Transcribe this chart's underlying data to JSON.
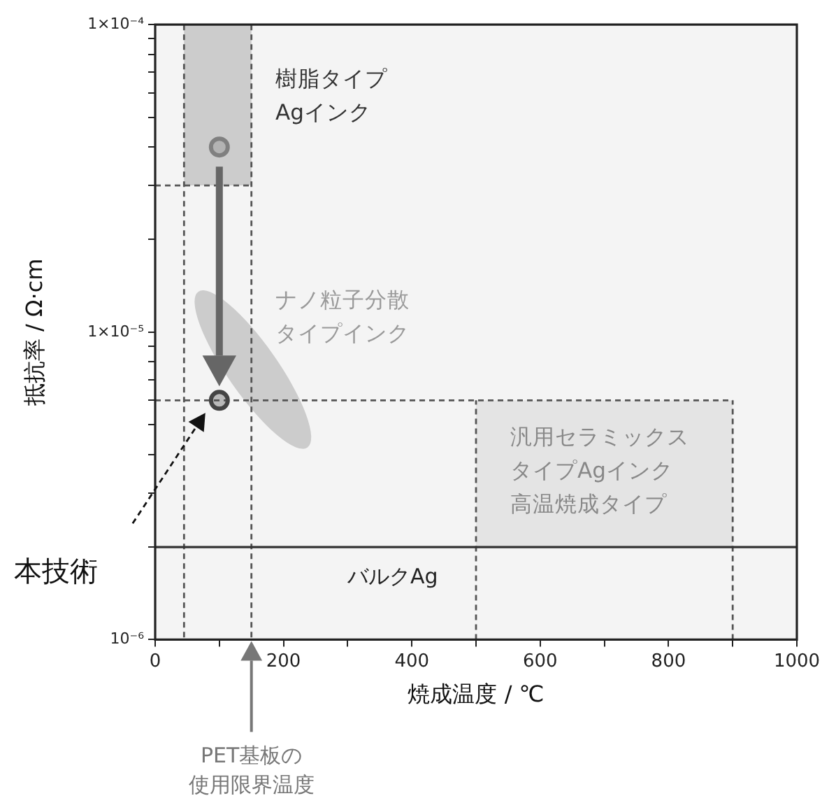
{
  "chart_data": {
    "type": "scatter",
    "xlabel": "焼成温度 / ℃",
    "ylabel": "抵抗率 / Ω·cm",
    "log": "y",
    "xlim": [
      0,
      1000
    ],
    "ylim": [
      1e-06,
      0.0001
    ],
    "xticks": [
      0,
      {
        "value": 100,
        "label": null
      },
      200,
      {
        "value": 300,
        "label": null
      },
      400,
      {
        "value": 500,
        "label": null
      },
      600,
      {
        "value": 700,
        "label": null
      },
      800,
      {
        "value": 900,
        "label": null
      },
      1000
    ],
    "yticks": [
      {
        "value": 1e-06,
        "label": "10⁻⁶"
      },
      {
        "value": 2e-06,
        "label": null
      },
      {
        "value": 3e-06,
        "label": null
      },
      {
        "value": 4e-06,
        "label": null
      },
      {
        "value": 5e-06,
        "label": null
      },
      {
        "value": 6e-06,
        "label": null
      },
      {
        "value": 7e-06,
        "label": null
      },
      {
        "value": 8e-06,
        "label": null
      },
      {
        "value": 9e-06,
        "label": null
      },
      {
        "value": 1e-05,
        "label": "1×10⁻⁵"
      },
      {
        "value": 2e-05,
        "label": null
      },
      {
        "value": 3e-05,
        "label": null
      },
      {
        "value": 4e-05,
        "label": null
      },
      {
        "value": 5e-05,
        "label": null
      },
      {
        "value": 6e-05,
        "label": null
      },
      {
        "value": 7e-05,
        "label": null
      },
      {
        "value": 8e-05,
        "label": null
      },
      {
        "value": 9e-05,
        "label": null
      },
      {
        "value": 0.0001,
        "label": "1×10⁻⁴"
      }
    ],
    "grid": false,
    "legend": false,
    "series": [
      {
        "type": "line",
        "line_style": "dashed",
        "color": "#555555",
        "x": [
          0,
          150
        ],
        "values": [
          3e-05,
          3e-05
        ]
      },
      {
        "type": "line",
        "line_style": "dashed",
        "color": "#555555",
        "x": [
          0,
          900
        ],
        "values": [
          6e-06,
          6e-06
        ]
      },
      {
        "type": "line",
        "line_style": "dashed",
        "color": "#555555",
        "x": [
          500,
          500
        ],
        "values": [
          1e-06,
          6e-06
        ]
      },
      {
        "type": "line",
        "line_style": "dashed",
        "color": "#555555",
        "x": [
          900,
          900
        ],
        "values": [
          1e-06,
          6e-06
        ]
      },
      {
        "marker": "circle",
        "color": "#808080",
        "x": [
          100
        ],
        "values": [
          4e-05
        ]
      },
      {
        "marker": "circle",
        "color": "#444444",
        "x": [
          100
        ],
        "values": [
          6e-06
        ]
      }
    ],
    "ref_lines": [
      {
        "axis": "x",
        "value": 45,
        "line_style": "dashed",
        "color": "#555555"
      },
      {
        "axis": "x",
        "value": 150,
        "label": "PET基板の使用限界温度",
        "line_style": "dashed",
        "color": "#555555"
      },
      {
        "axis": "y",
        "value": 2e-06,
        "label": "バルクAg",
        "line_style": "solid",
        "color": "#333333"
      }
    ],
    "annotations": [
      "樹脂タイプAgインク",
      "ナノ粒子分散タイプインク",
      "汎用セラミックスタイプAgインク高温焼成タイプ",
      "本技術"
    ]
  }
}
